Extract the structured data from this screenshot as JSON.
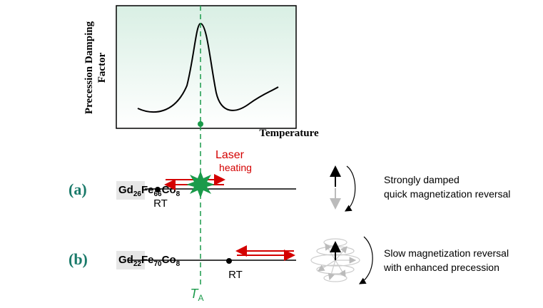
{
  "plot": {
    "y_label": [
      "Precession Damping",
      "Factor"
    ],
    "x_label": "Temperature"
  },
  "laser_label": [
    "Laser",
    "heating"
  ],
  "rows": [
    {
      "label": "(a)",
      "formula": [
        {
          "symbol": "Gd",
          "sub": "26"
        },
        {
          "symbol": "Fe",
          "sub": "66"
        },
        {
          "symbol": "Co",
          "sub": "8"
        }
      ],
      "point": "RT",
      "description": [
        "Strongly damped",
        "quick magnetization reversal"
      ]
    },
    {
      "label": "(b)",
      "formula": [
        {
          "symbol": "Gd",
          "sub": "22"
        },
        {
          "symbol": "Fe",
          "sub": "70"
        },
        {
          "symbol": "Co",
          "sub": "8"
        }
      ],
      "point": "RT",
      "description": [
        "Slow magnetization reversal",
        "with enhanced precession"
      ]
    }
  ],
  "marker": {
    "symbol": "T",
    "sub": "A"
  }
}
